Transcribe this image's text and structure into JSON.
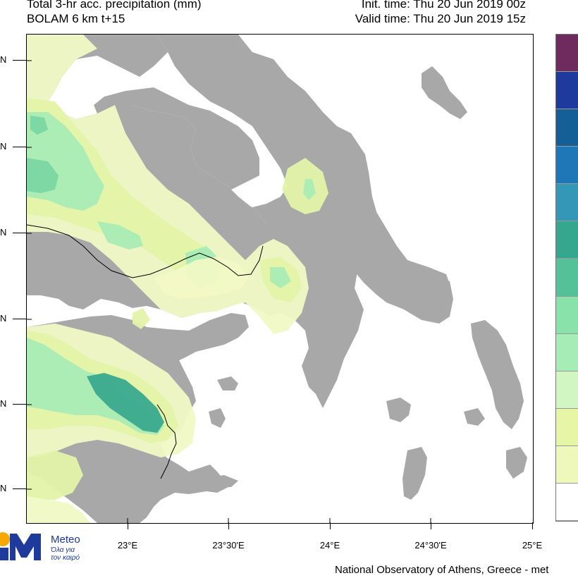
{
  "header": {
    "left_line1": "Total 3-hr acc. precipitation (mm)",
    "left_line2": "BOLAM 6 km t+15",
    "right_line1": "Init. time: Thu 20 Jun 2019 00z",
    "right_line2": "Valid time: Thu 20 Jun 2019 15z"
  },
  "axes": {
    "lon_labels": [
      "23°E",
      "23°30'E",
      "24°E",
      "24°30'E",
      "25°E"
    ],
    "lat_labels": [
      "N",
      "N",
      "N",
      "N",
      "N",
      "N"
    ]
  },
  "map": {
    "land_color": "#a8a8a8",
    "sea_color": "#ffffff",
    "border_color": "#000000",
    "precip_levels": [
      {
        "color": "#f1f9c6"
      },
      {
        "color": "#e3f3a8"
      },
      {
        "color": "#a9ebb5"
      },
      {
        "color": "#7ad7a3"
      },
      {
        "color": "#3aa98e"
      }
    ]
  },
  "colorbar": {
    "colors": [
      "#ffffff",
      "#eef8bb",
      "#e6f5a6",
      "#d2f6c2",
      "#a5ecb6",
      "#88e2aa",
      "#55c199",
      "#35a78f",
      "#3397b7",
      "#1e78b8",
      "#145f96",
      "#1d3a9c",
      "#6f2b5e"
    ]
  },
  "branding": {
    "logo_name": "Meteo",
    "tagline_1": "Όλα για",
    "tagline_2": "τον καιρό",
    "credit": "National Observatory of Athens, Greece - met"
  }
}
